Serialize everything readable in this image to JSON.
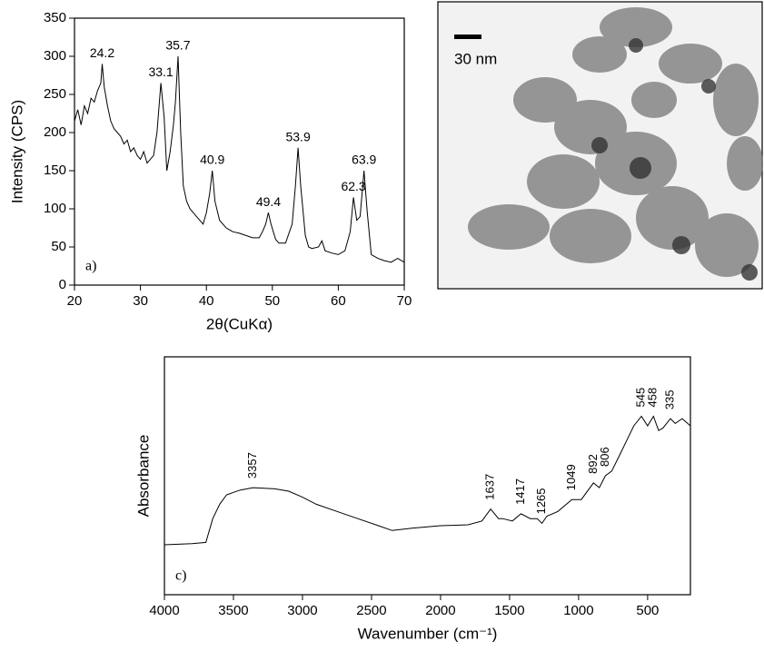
{
  "chart_data": [
    {
      "type": "line",
      "panel_label": "a)",
      "xlabel": "2θ(CuKα)",
      "ylabel": "Intensity (CPS)",
      "xlim": [
        20,
        70
      ],
      "xticks": [
        20,
        30,
        40,
        50,
        60,
        70
      ],
      "ylim": [
        0,
        350
      ],
      "yticks": [
        0,
        50,
        100,
        150,
        200,
        250,
        300,
        350
      ],
      "series": [
        {
          "color": "#000000",
          "x": [
            20,
            20.5,
            21,
            21.5,
            22,
            22.5,
            23,
            23.5,
            24,
            24.2,
            24.5,
            25,
            25.5,
            26,
            26.5,
            27,
            27.5,
            28,
            28.5,
            29,
            29.5,
            30,
            30.5,
            31,
            31.5,
            32,
            32.5,
            33.1,
            33.6,
            34,
            34.5,
            35,
            35.3,
            35.7,
            36.1,
            36.5,
            37,
            37.5,
            38,
            38.5,
            39,
            39.5,
            40,
            40.5,
            40.9,
            41.3,
            42,
            42.5,
            43,
            44,
            45,
            46,
            47,
            48,
            48.5,
            49,
            49.4,
            49.8,
            50.5,
            51,
            52,
            53,
            53.5,
            53.9,
            54.3,
            55,
            55.5,
            56,
            57,
            57.5,
            58,
            59,
            60,
            61,
            61.8,
            62.3,
            62.8,
            63.3,
            63.9,
            64.4,
            65,
            66,
            67,
            68,
            69,
            70
          ],
          "values": [
            215,
            230,
            210,
            235,
            225,
            245,
            240,
            255,
            265,
            290,
            260,
            235,
            215,
            205,
            200,
            195,
            185,
            190,
            175,
            180,
            170,
            165,
            175,
            160,
            165,
            170,
            200,
            265,
            220,
            150,
            175,
            210,
            240,
            300,
            200,
            130,
            110,
            100,
            95,
            90,
            85,
            80,
            95,
            120,
            150,
            110,
            85,
            80,
            75,
            70,
            68,
            65,
            62,
            62,
            70,
            80,
            95,
            80,
            60,
            55,
            55,
            80,
            130,
            180,
            130,
            65,
            50,
            48,
            50,
            58,
            45,
            42,
            40,
            45,
            70,
            115,
            85,
            90,
            150,
            95,
            40,
            35,
            32,
            30,
            35,
            30
          ]
        }
      ],
      "annotations": [
        {
          "label": "24.2",
          "x": 24.2,
          "y": 290
        },
        {
          "label": "33.1",
          "x": 33.1,
          "y": 265
        },
        {
          "label": "35.7",
          "x": 35.7,
          "y": 300
        },
        {
          "label": "40.9",
          "x": 40.9,
          "y": 150
        },
        {
          "label": "49.4",
          "x": 49.4,
          "y": 95
        },
        {
          "label": "53.9",
          "x": 53.9,
          "y": 180
        },
        {
          "label": "62.3",
          "x": 62.3,
          "y": 115
        },
        {
          "label": "63.9",
          "x": 63.9,
          "y": 150
        }
      ]
    },
    {
      "type": "line",
      "panel_label": "c)",
      "xlabel": "Wavenumber (cm⁻¹)",
      "ylabel": "Absorbance",
      "xlim": [
        4000,
        190
      ],
      "xticks": [
        4000,
        3500,
        3000,
        2500,
        2000,
        1500,
        1000,
        500
      ],
      "ylim": [
        0,
        100
      ],
      "series": [
        {
          "color": "#000000",
          "x": [
            4000,
            3800,
            3700,
            3650,
            3600,
            3550,
            3450,
            3357,
            3200,
            3100,
            3000,
            2900,
            2750,
            2600,
            2450,
            2350,
            2200,
            2000,
            1800,
            1700,
            1637,
            1580,
            1550,
            1480,
            1417,
            1350,
            1300,
            1265,
            1230,
            1150,
            1049,
            980,
            930,
            892,
            850,
            806,
            760,
            700,
            650,
            600,
            545,
            500,
            458,
            420,
            390,
            335,
            300,
            250,
            190
          ],
          "values": [
            21,
            21.5,
            22,
            32,
            38,
            42,
            44,
            45,
            44.5,
            43.5,
            41,
            38,
            35,
            32,
            29,
            27,
            28,
            29,
            29.4,
            31,
            36,
            32,
            32,
            31,
            34,
            32,
            32,
            30,
            33,
            35,
            40,
            40,
            44,
            47,
            45,
            50,
            52,
            59,
            65,
            71,
            75,
            71,
            75,
            69,
            70,
            74,
            72,
            74,
            71
          ]
        }
      ],
      "annotations": [
        {
          "label": "3357",
          "x": 3357,
          "y": 45
        },
        {
          "label": "1637",
          "x": 1637,
          "y": 36
        },
        {
          "label": "1417",
          "x": 1417,
          "y": 34
        },
        {
          "label": "1265",
          "x": 1265,
          "y": 30
        },
        {
          "label": "1049",
          "x": 1049,
          "y": 40
        },
        {
          "label": "892",
          "x": 892,
          "y": 47
        },
        {
          "label": "806",
          "x": 806,
          "y": 50
        },
        {
          "label": "545",
          "x": 545,
          "y": 75
        },
        {
          "label": "458",
          "x": 458,
          "y": 75
        },
        {
          "label": "335",
          "x": 335,
          "y": 74
        }
      ]
    }
  ],
  "image": {
    "scale_label": "30 nm"
  }
}
